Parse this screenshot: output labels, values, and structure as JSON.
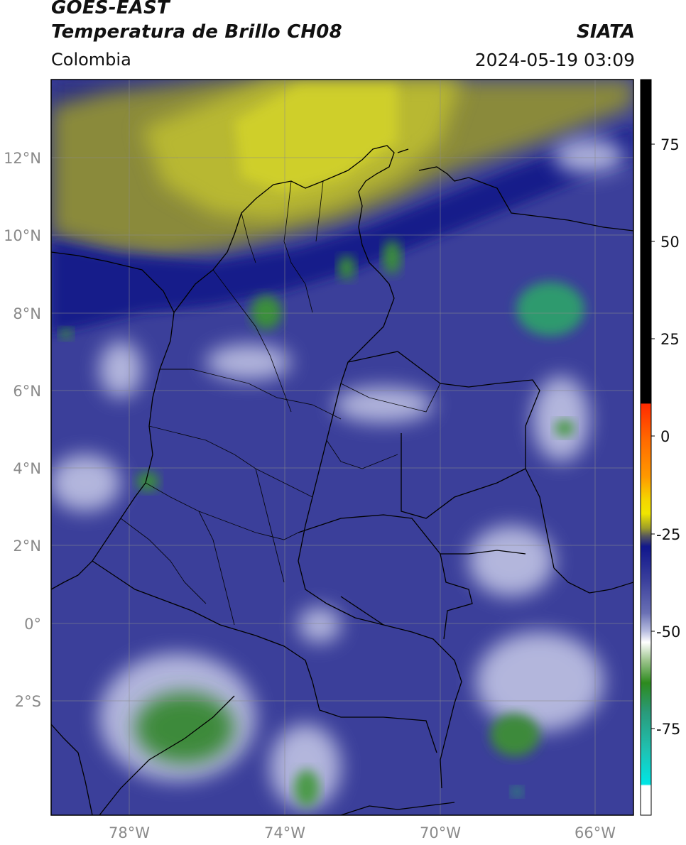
{
  "header": {
    "satellite": "GOES-EAST",
    "product": "Temperatura de Brillo CH08",
    "brand": "SIATA",
    "region": "Colombia",
    "timestamp": "2024-05-19 03:09"
  },
  "map": {
    "lat_labels": [
      "12°N",
      "10°N",
      "8°N",
      "6°N",
      "4°N",
      "2°N",
      "0°",
      "2°S"
    ],
    "lon_labels": [
      "78°W",
      "74°W",
      "70°W",
      "66°W"
    ],
    "extent": {
      "lon_min": -80,
      "lon_max": -65,
      "lat_min": -5,
      "lat_max": 14
    }
  },
  "colorbar": {
    "label_values": [
      "75",
      "50",
      "25",
      "0",
      "-25",
      "-50",
      "-75"
    ],
    "range": [
      -95,
      90
    ],
    "colors": {
      "black": "#000000",
      "red": "#ff2a00",
      "orange": "#ff9900",
      "yellow": "#f0e600",
      "olive": "#9c9c2a",
      "gray": "#5a5a5a",
      "navy": "#10168c",
      "indigo": "#3a3f9c",
      "lavender": "#b8bde0",
      "white": "#ffffff",
      "green": "#2d8a1e",
      "teal": "#2a9a7a",
      "cyan": "#00e6e6"
    }
  }
}
